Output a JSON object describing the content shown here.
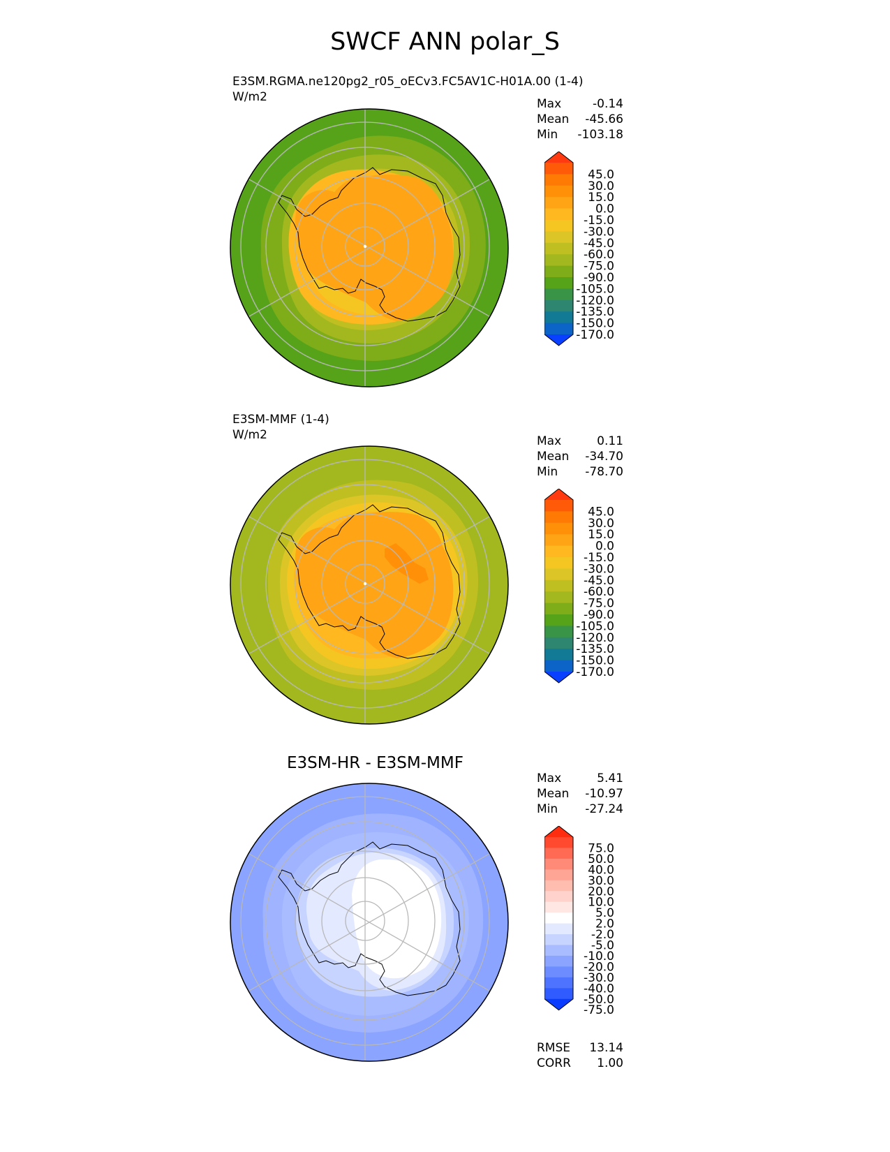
{
  "figure": {
    "title": "SWCF ANN polar_S"
  },
  "panels": [
    {
      "title": "E3SM.RGMA.ne120pg2_r05_oECv3.FC5AV1C-H01A.00 (1-4)",
      "units": "W/m2",
      "stats": [
        {
          "label": "Max",
          "value": "-0.14"
        },
        {
          "label": "Mean",
          "value": "-45.66"
        },
        {
          "label": "Min",
          "value": "-103.18"
        }
      ]
    },
    {
      "title": "E3SM-MMF (1-4)",
      "units": "W/m2",
      "stats": [
        {
          "label": "Max",
          "value": "0.11"
        },
        {
          "label": "Mean",
          "value": "-34.70"
        },
        {
          "label": "Min",
          "value": "-78.70"
        }
      ]
    },
    {
      "title": "E3SM-HR - E3SM-MMF",
      "stats": [
        {
          "label": "Max",
          "value": "5.41"
        },
        {
          "label": "Mean",
          "value": "-10.97"
        },
        {
          "label": "Min",
          "value": "-27.24"
        }
      ],
      "metrics": [
        {
          "label": "RMSE",
          "value": "13.14"
        },
        {
          "label": "CORR",
          "value": "1.00"
        }
      ]
    }
  ],
  "colorbars": {
    "field": {
      "ticks": [
        "45.0",
        "30.0",
        "15.0",
        "0.0",
        "-15.0",
        "-30.0",
        "-45.0",
        "-60.0",
        "-75.0",
        "-90.0",
        "-105.0",
        "-120.0",
        "-135.0",
        "-150.0",
        "-170.0"
      ],
      "colors": [
        "#ff3a10",
        "#ff5a08",
        "#ff7a05",
        "#ff9008",
        "#ffa515",
        "#ffb820",
        "#f5c622",
        "#dcc526",
        "#c0bf22",
        "#a2b81e",
        "#7fad1a",
        "#56a31a",
        "#3a9448",
        "#2f8670",
        "#137a96",
        "#0c63c8",
        "#0940ff"
      ]
    },
    "diff": {
      "ticks": [
        "75.0",
        "50.0",
        "40.0",
        "30.0",
        "20.0",
        "10.0",
        "5.0",
        "2.0",
        "-2.0",
        "-5.0",
        "-10.0",
        "-20.0",
        "-30.0",
        "-40.0",
        "-50.0",
        "-75.0"
      ],
      "colors": [
        "#ff2d0f",
        "#ff4a30",
        "#ff6a55",
        "#ff8a78",
        "#ffa596",
        "#ffbdb0",
        "#ffd3cb",
        "#ffe7e3",
        "#ffffff",
        "#e3e9ff",
        "#c7d4ff",
        "#a8bcff",
        "#8aa4ff",
        "#6c8cff",
        "#4e74ff",
        "#305cff",
        "#0a3cff"
      ]
    }
  },
  "chart_data": [
    {
      "type": "heatmap",
      "projection": "south polar stereographic",
      "title": "E3SM.RGMA.ne120pg2_r05_oECv3.FC5AV1C-H01A.00 (1-4)",
      "units": "W/m2",
      "stats": {
        "max": -0.14,
        "mean": -45.66,
        "min": -103.18
      },
      "colorbar_levels": [
        -170,
        -150,
        -135,
        -120,
        -105,
        -90,
        -75,
        -60,
        -45,
        -30,
        -15,
        0,
        15,
        30,
        45
      ],
      "approx_field": {
        "antarctica": -22,
        "ice_margin": -38,
        "ocean_mid": -55,
        "outer_ring": -82
      }
    },
    {
      "type": "heatmap",
      "projection": "south polar stereographic",
      "title": "E3SM-MMF (1-4)",
      "units": "W/m2",
      "stats": {
        "max": 0.11,
        "mean": -34.7,
        "min": -78.7
      },
      "colorbar_levels": [
        -170,
        -150,
        -135,
        -120,
        -105,
        -90,
        -75,
        -60,
        -45,
        -30,
        -15,
        0,
        15,
        30,
        45
      ],
      "approx_field": {
        "antarctica": -22,
        "east_interior": -16,
        "ice_margin": -38,
        "ocean_mid": -50,
        "outer_ring": -65
      }
    },
    {
      "type": "heatmap",
      "projection": "south polar stereographic",
      "title": "E3SM-HR - E3SM-MMF",
      "stats": {
        "max": 5.41,
        "mean": -10.97,
        "min": -27.24
      },
      "rmse": 13.14,
      "corr": 1.0,
      "colorbar_levels": [
        -75,
        -50,
        -40,
        -30,
        -20,
        -10,
        -5,
        -2,
        2,
        5,
        10,
        20,
        30,
        40,
        50,
        75
      ],
      "approx_field": {
        "antarctica": 0,
        "coast": -5,
        "ocean_mid": -12,
        "outer_ring": -22
      }
    }
  ]
}
